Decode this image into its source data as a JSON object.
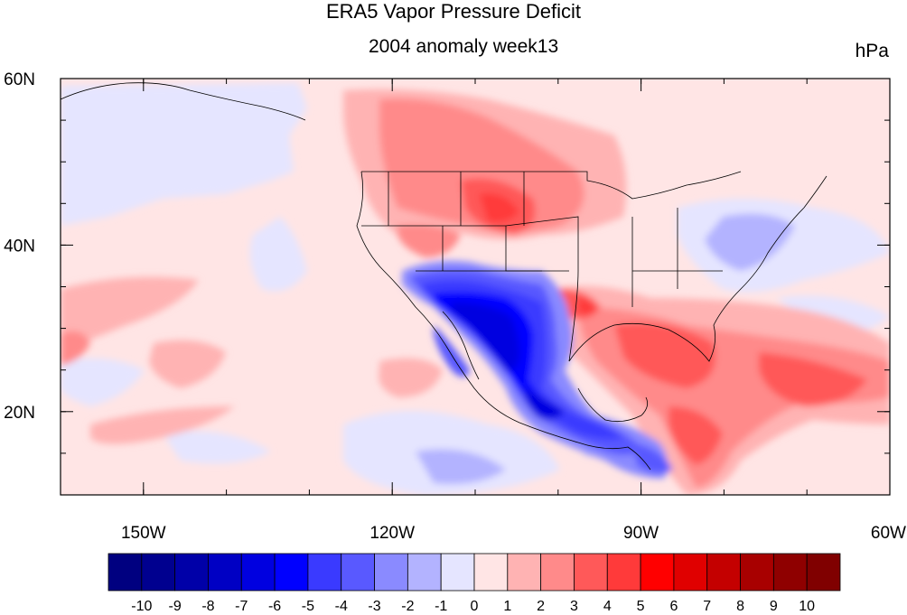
{
  "title": "ERA5 Vapor Pressure Deficit",
  "subtitle": "2004 anomaly week13",
  "units": "hPa",
  "map": {
    "lon_range": [
      -160,
      -60
    ],
    "lat_range": [
      10,
      60
    ],
    "x_ticks": [
      {
        "lon": -150,
        "label": "150W"
      },
      {
        "lon": -120,
        "label": "120W"
      },
      {
        "lon": -90,
        "label": "90W"
      },
      {
        "lon": -60,
        "label": "60W"
      }
    ],
    "y_ticks": [
      {
        "lat": 60,
        "label": "60N"
      },
      {
        "lat": 40,
        "label": "40N"
      },
      {
        "lat": 20,
        "label": "20N"
      }
    ]
  },
  "colorbar": {
    "labels": [
      "-10",
      "-9",
      "-8",
      "-7",
      "-6",
      "-5",
      "-4",
      "-3",
      "-2",
      "-1",
      "0",
      "1",
      "2",
      "3",
      "4",
      "5",
      "6",
      "7",
      "8",
      "9",
      "10"
    ],
    "colors": [
      "#000080",
      "#00008f",
      "#0000a8",
      "#0000c4",
      "#0000e0",
      "#0000ff",
      "#3a3aff",
      "#5959ff",
      "#8a8aff",
      "#b3b3ff",
      "#e5e5ff",
      "#ffe5e5",
      "#ffb3b3",
      "#ff8a8a",
      "#ff5959",
      "#ff3a3a",
      "#ff0000",
      "#e00000",
      "#c40000",
      "#a80000",
      "#8f0000",
      "#800000"
    ]
  },
  "chart_data": {
    "type": "heatmap",
    "title": "ERA5 Vapor Pressure Deficit",
    "subtitle": "2004 anomaly week13",
    "units": "hPa",
    "x_range_lon": [
      -160,
      -60
    ],
    "y_range_lat": [
      10,
      60
    ],
    "scale": [
      -10,
      10
    ],
    "regions": [
      {
        "lon": -105,
        "lat": 29,
        "value": -6
      },
      {
        "lon": -103,
        "lat": 23,
        "value": -6
      },
      {
        "lon": -111,
        "lat": 33,
        "value": -5
      },
      {
        "lon": -98,
        "lat": 17,
        "value": -4
      },
      {
        "lon": -86,
        "lat": 15,
        "value": -3
      },
      {
        "lon": -79,
        "lat": 40,
        "value": -2
      },
      {
        "lon": -105,
        "lat": 45,
        "value": 4
      },
      {
        "lon": -98,
        "lat": 32,
        "value": 4
      },
      {
        "lon": -85,
        "lat": 26,
        "value": 4
      },
      {
        "lon": -80,
        "lat": 16,
        "value": 3
      },
      {
        "lon": -110,
        "lat": 55,
        "value": 2
      },
      {
        "lon": -158,
        "lat": 28,
        "value": 2
      },
      {
        "lon": -145,
        "lat": 24,
        "value": 1
      },
      {
        "lon": -140,
        "lat": 50,
        "value": -1
      },
      {
        "lon": -112,
        "lat": 13,
        "value": -1
      }
    ]
  }
}
